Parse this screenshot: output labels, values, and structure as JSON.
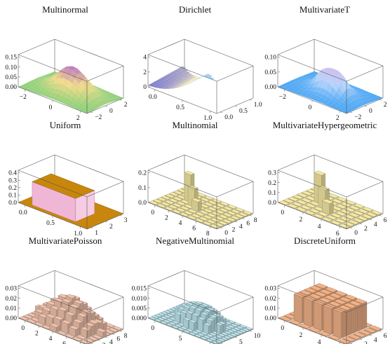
{
  "chart_data": [
    {
      "type": "surface",
      "title": "Multinormal",
      "zticks": [
        "0.00",
        "0.05",
        "0.10",
        "0.15"
      ],
      "xticks": [
        "−2",
        "0",
        "2"
      ],
      "yticks": [
        "−2",
        "0",
        "2"
      ],
      "colors": [
        "#8ed07a",
        "#f3dc8a",
        "#b870c8"
      ]
    },
    {
      "type": "surface",
      "title": "Dirichlet",
      "zticks": [
        "0",
        "2",
        "4"
      ],
      "xticks": [
        "0.0",
        "0.5",
        "1.0"
      ],
      "yticks": [
        "0.0",
        "0.5",
        "1.0"
      ],
      "colors": [
        "#6e6cd0",
        "#f6ecb8",
        "#9fd0f0"
      ]
    },
    {
      "type": "surface",
      "title": "MultivariateT",
      "zticks": [
        "0.00",
        "0.05",
        "0.10"
      ],
      "xticks": [
        "−2",
        "0",
        "2"
      ],
      "yticks": [
        "−2",
        "0",
        "2"
      ],
      "colors": [
        "#4aa6f4",
        "#b9d5fb",
        "#d9b9e8"
      ]
    },
    {
      "type": "surface",
      "title": "Uniform",
      "zticks": [
        "0.0",
        "0.1",
        "0.2",
        "0.3",
        "0.4"
      ],
      "xticks": [
        "0.0",
        "0.5",
        "1.0"
      ],
      "yticks": [
        "1",
        "2",
        "3"
      ],
      "colors": [
        "#c8860c",
        "#f0b6d6"
      ]
    },
    {
      "type": "bar3d",
      "title": "Multinomial",
      "zticks": [
        "0.0",
        "0.1",
        "0.2"
      ],
      "xticks": [
        "0",
        "2",
        "4",
        "6",
        "8"
      ],
      "yticks": [
        "0",
        "2",
        "4",
        "6",
        "8"
      ],
      "colors": [
        "#f4e8a4"
      ]
    },
    {
      "type": "bar3d",
      "title": "MultivariateHypergeometric",
      "zticks": [
        "0.0",
        "0.1",
        "0.2",
        "0.3"
      ],
      "xticks": [
        "0",
        "2",
        "4",
        "6"
      ],
      "yticks": [
        "0",
        "2",
        "4",
        "6"
      ],
      "colors": [
        "#f4e8a4"
      ]
    },
    {
      "type": "bar3d",
      "title": "MultivariatePoisson",
      "zticks": [
        "0.00",
        "0.01",
        "0.02",
        "0.03"
      ],
      "xticks": [
        "0",
        "2",
        "4",
        "6",
        "8"
      ],
      "yticks": [
        "0",
        "2",
        "4",
        "6",
        "8"
      ],
      "colors": [
        "#f2c4ae"
      ]
    },
    {
      "type": "bar3d",
      "title": "NegativeMultinomial",
      "zticks": [
        "0.000",
        "0.005",
        "0.010",
        "0.015"
      ],
      "xticks": [
        "0",
        "5",
        "10"
      ],
      "yticks": [
        "0",
        "5",
        "10"
      ],
      "colors": [
        "#bfe6ee"
      ]
    },
    {
      "type": "bar3d",
      "title": "DiscreteUniform",
      "zticks": [
        "0.00",
        "0.01",
        "0.02",
        "0.03"
      ],
      "xticks": [
        "0",
        "2",
        "4",
        "6"
      ],
      "yticks": [
        "0",
        "2",
        "4",
        "6"
      ],
      "colors": [
        "#f1b288"
      ]
    }
  ]
}
